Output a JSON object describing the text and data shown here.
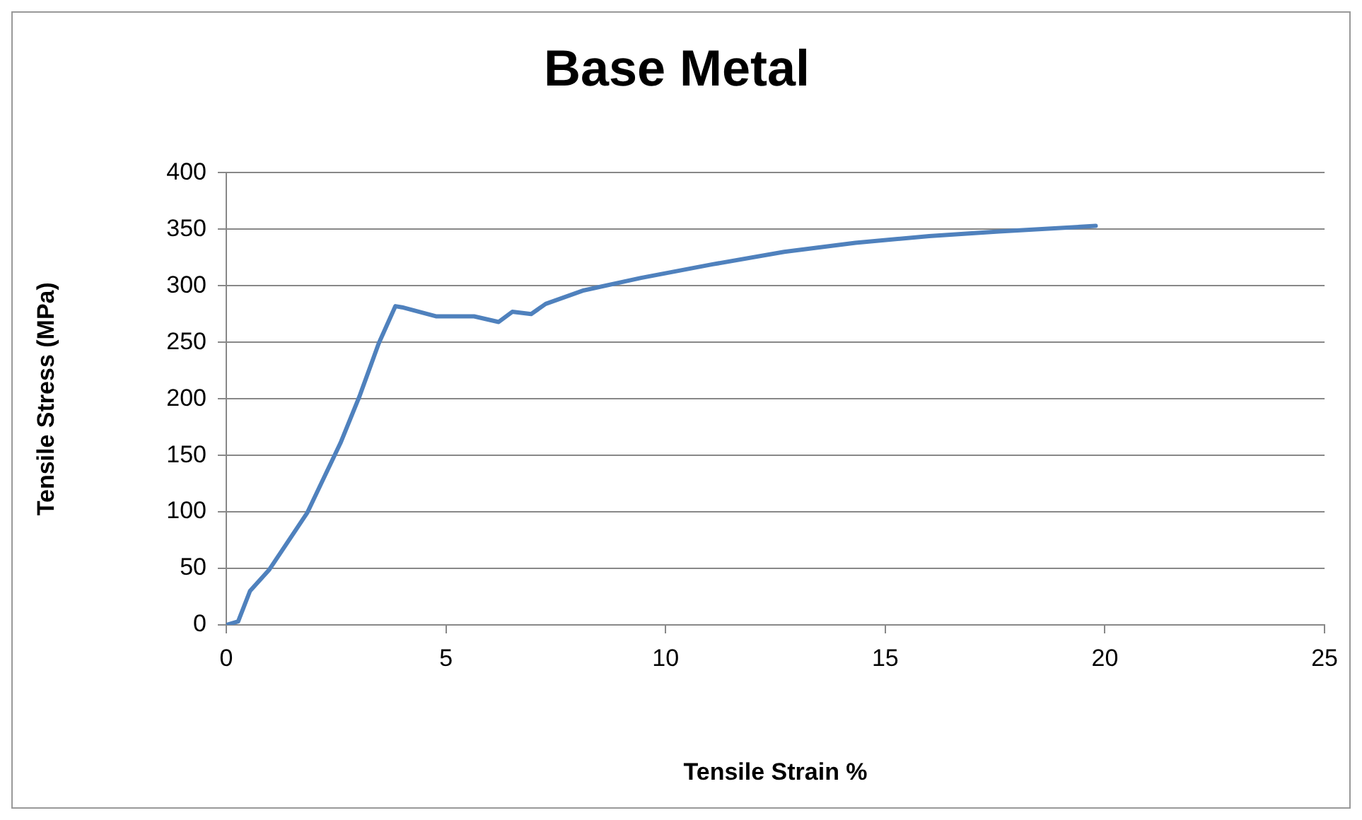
{
  "chart_data": {
    "type": "line",
    "title": "Base Metal",
    "xlabel": "Tensile Strain %",
    "ylabel": "Tensile Stress (MPa)",
    "x": [
      0,
      0.27,
      0.54,
      0.98,
      1.84,
      2.6,
      3.03,
      3.47,
      3.85,
      4.0,
      4.77,
      5.64,
      6.2,
      6.51,
      6.94,
      7.27,
      8.14,
      9.44,
      11.07,
      12.7,
      14.32,
      16.0,
      17.58,
      19.79
    ],
    "series": [
      {
        "color": "#4f81bd",
        "values": [
          0,
          3,
          30,
          49,
          99,
          161,
          202,
          249,
          282,
          281,
          273,
          273,
          268,
          277,
          275,
          284,
          296,
          307,
          319,
          330,
          338,
          344,
          348,
          353
        ]
      }
    ],
    "xlim": [
      0,
      25
    ],
    "xticks": [
      0,
      5,
      10,
      15,
      20,
      25
    ],
    "ylim": [
      0,
      400
    ],
    "yticks": [
      0,
      50,
      100,
      150,
      200,
      250,
      300,
      350,
      400
    ],
    "grid": "y",
    "legend": false,
    "marker": "none",
    "line_style": "solid"
  }
}
